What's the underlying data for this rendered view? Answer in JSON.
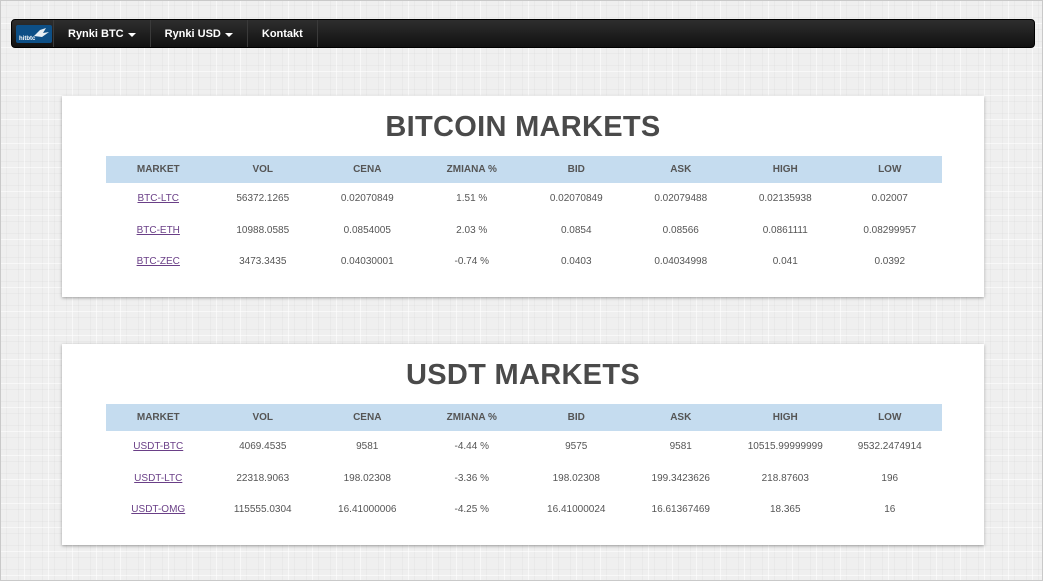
{
  "nav": {
    "logo_text": "hitbtc",
    "items": [
      {
        "label": "Rynki BTC",
        "dropdown": true
      },
      {
        "label": "Rynki USD",
        "dropdown": true
      },
      {
        "label": "Kontakt",
        "dropdown": false
      }
    ]
  },
  "columns": [
    "MARKET",
    "VOL",
    "CENA",
    "ZMIANA %",
    "BID",
    "ASK",
    "HIGH",
    "LOW"
  ],
  "btc": {
    "title": "BITCOIN MARKETS",
    "rows": [
      {
        "market": "BTC-LTC",
        "vol": "56372.1265",
        "cena": "0.02070849",
        "zmiana": "1.51 %",
        "bid": "0.02070849",
        "ask": "0.02079488",
        "high": "0.02135938",
        "low": "0.02007"
      },
      {
        "market": "BTC-ETH",
        "vol": "10988.0585",
        "cena": "0.0854005",
        "zmiana": "2.03 %",
        "bid": "0.0854",
        "ask": "0.08566",
        "high": "0.0861111",
        "low": "0.08299957"
      },
      {
        "market": "BTC-ZEC",
        "vol": "3473.3435",
        "cena": "0.04030001",
        "zmiana": "-0.74 %",
        "bid": "0.0403",
        "ask": "0.04034998",
        "high": "0.041",
        "low": "0.0392"
      }
    ]
  },
  "usdt": {
    "title": "USDT MARKETS",
    "rows": [
      {
        "market": "USDT-BTC",
        "vol": "4069.4535",
        "cena": "9581",
        "zmiana": "-4.44 %",
        "bid": "9575",
        "ask": "9581",
        "high": "10515.99999999",
        "low": "9532.2474914"
      },
      {
        "market": "USDT-LTC",
        "vol": "22318.9063",
        "cena": "198.02308",
        "zmiana": "-3.36 %",
        "bid": "198.02308",
        "ask": "199.3423626",
        "high": "218.87603",
        "low": "196"
      },
      {
        "market": "USDT-OMG",
        "vol": "115555.0304",
        "cena": "16.41000006",
        "zmiana": "-4.25 %",
        "bid": "16.41000024",
        "ask": "16.61367469",
        "high": "18.365",
        "low": "16"
      }
    ]
  },
  "colors": {
    "header_bg": "#c5dcef",
    "link": "#6a3f87",
    "title": "#4a4a4a",
    "navbar": "#1a1a1a"
  }
}
